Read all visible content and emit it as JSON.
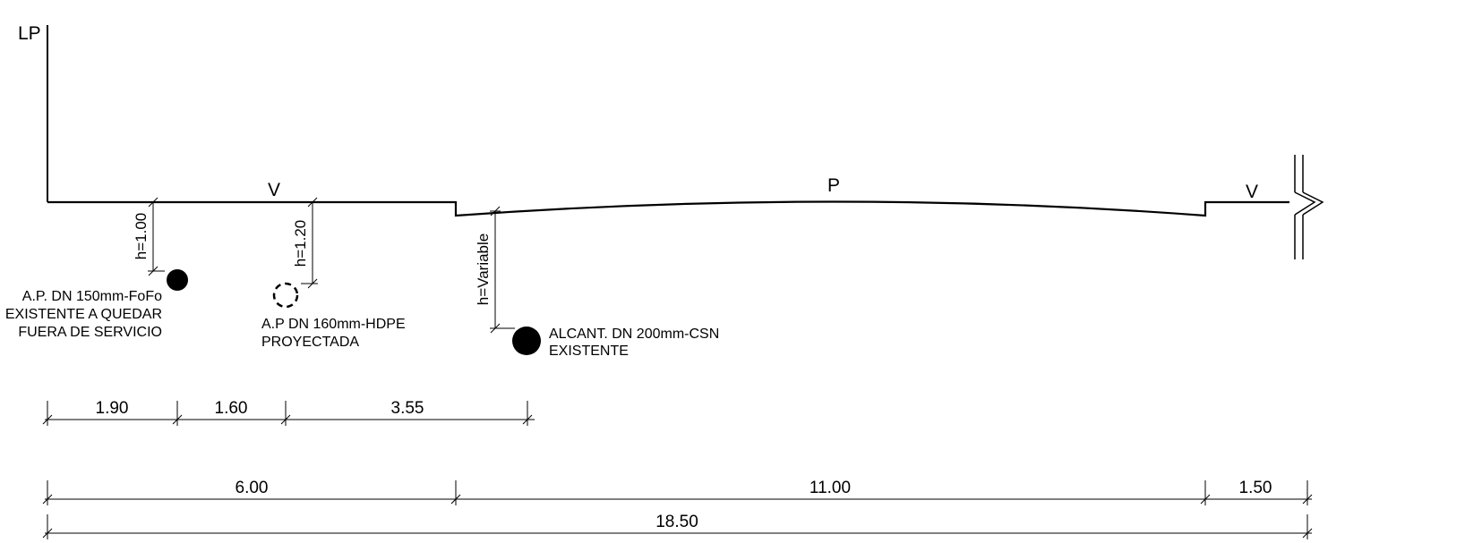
{
  "section_labels": {
    "left": "LP",
    "sidewalk_left": "V",
    "pavement": "P",
    "sidewalk_right": "V"
  },
  "depth_labels": {
    "pipe1": "h=1.00",
    "pipe2": "h=1.20",
    "pipe3": "h=Variable"
  },
  "pipes": [
    {
      "line1": "A.P. DN 150mm-FoFo",
      "line2": "EXISTENTE A QUEDAR",
      "line3": "FUERA DE SERVICIO",
      "status": "existing"
    },
    {
      "line1": "A.P DN 160mm-HDPE",
      "line2": "PROYECTADA",
      "status": "projected"
    },
    {
      "line1": "ALCANT. DN 200mm-CSN",
      "line2": "EXISTENTE",
      "status": "existing"
    }
  ],
  "dimensions_row1": [
    "1.90",
    "1.60",
    "3.55"
  ],
  "dimensions_row2": [
    "6.00",
    "11.00",
    "1.50"
  ],
  "dimension_total": "18.50",
  "colors": {
    "line": "#000000",
    "background": "#ffffff"
  }
}
